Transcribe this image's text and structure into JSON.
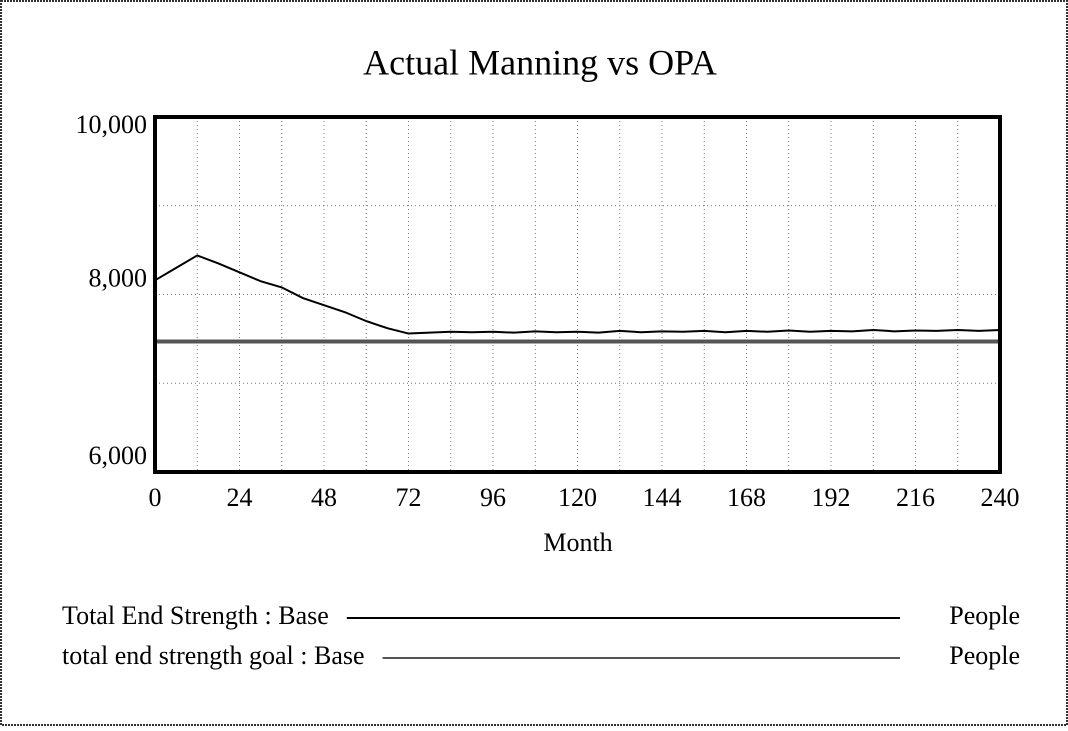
{
  "chart_data": {
    "type": "line",
    "title": "Actual Manning vs OPA",
    "x_label": "Month",
    "x": [
      0,
      6,
      12,
      18,
      24,
      30,
      36,
      42,
      48,
      54,
      60,
      66,
      72,
      78,
      84,
      90,
      96,
      102,
      108,
      114,
      120,
      126,
      132,
      138,
      144,
      150,
      156,
      162,
      168,
      174,
      180,
      186,
      192,
      198,
      204,
      210,
      216,
      222,
      228,
      234,
      240
    ],
    "series": [
      {
        "name": "Total End Strength : Base",
        "unit": "People",
        "color": "#000000",
        "values": [
          8160,
          8300,
          8440,
          8350,
          8250,
          8150,
          8080,
          7960,
          7880,
          7800,
          7700,
          7620,
          7560,
          7570,
          7580,
          7575,
          7580,
          7570,
          7585,
          7575,
          7580,
          7570,
          7590,
          7575,
          7585,
          7580,
          7590,
          7575,
          7590,
          7580,
          7595,
          7580,
          7590,
          7585,
          7600,
          7585,
          7595,
          7590,
          7600,
          7590,
          7600
        ]
      },
      {
        "name": "total end strength goal : Base",
        "unit": "People",
        "color": "#555555",
        "values": [
          7470,
          7470,
          7470,
          7470,
          7470,
          7470,
          7470,
          7470,
          7470,
          7470,
          7470,
          7470,
          7470,
          7470,
          7470,
          7470,
          7470,
          7470,
          7470,
          7470,
          7470,
          7470,
          7470,
          7470,
          7470,
          7470,
          7470,
          7470,
          7470,
          7470,
          7470,
          7470,
          7470,
          7470,
          7470,
          7470,
          7470,
          7470,
          7470,
          7470,
          7470
        ]
      }
    ],
    "xlim": [
      0,
      240
    ],
    "xticks": [
      0,
      24,
      48,
      72,
      96,
      120,
      144,
      168,
      192,
      216,
      240
    ],
    "xgrid": [
      12,
      24,
      36,
      48,
      60,
      72,
      84,
      96,
      108,
      120,
      132,
      144,
      156,
      168,
      180,
      192,
      204,
      216,
      228
    ],
    "ylim": [
      6000,
      10000
    ],
    "yticks": [
      {
        "value": 6000,
        "label": "6,000"
      },
      {
        "value": 8000,
        "label": "8,000"
      },
      {
        "value": 10000,
        "label": "10,000"
      }
    ],
    "ygrid": [
      7000,
      8000,
      9000
    ],
    "grid": true
  }
}
